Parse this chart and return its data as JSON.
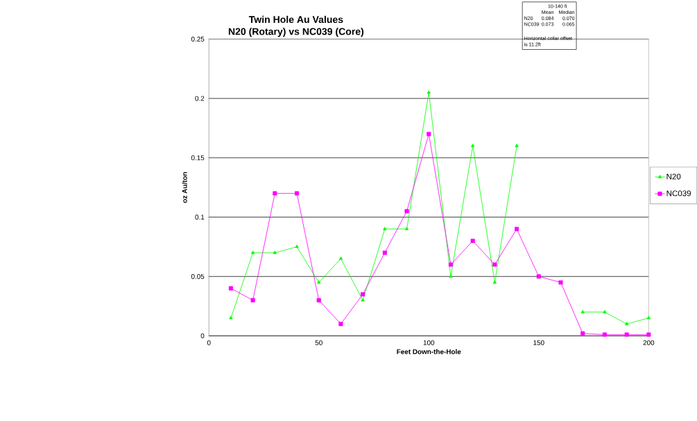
{
  "chart_data": {
    "type": "line",
    "title": "Twin Hole Au Values",
    "subtitle": "N20 (Rotary) vs NC039 (Core)",
    "xlabel": "Feet Down-the-Hole",
    "ylabel": "oz Au/ton",
    "x": [
      10,
      20,
      30,
      40,
      50,
      60,
      70,
      80,
      90,
      100,
      110,
      120,
      130,
      140,
      150,
      160,
      170,
      180,
      190,
      200
    ],
    "series": [
      {
        "name": "N20",
        "color": "#00ff00",
        "marker": "triangle",
        "values": [
          0.015,
          0.07,
          0.07,
          0.075,
          0.045,
          0.065,
          0.03,
          0.09,
          0.09,
          0.205,
          0.05,
          0.16,
          0.045,
          0.16,
          null,
          null,
          0.02,
          0.02,
          0.01,
          0.015
        ]
      },
      {
        "name": "NC039",
        "color": "#ff00ff",
        "marker": "square",
        "values": [
          0.04,
          0.03,
          0.12,
          0.12,
          0.03,
          0.01,
          0.035,
          0.07,
          0.105,
          0.17,
          0.06,
          0.08,
          0.06,
          0.09,
          0.05,
          0.045,
          0.002,
          0.001,
          0.001,
          0.001
        ]
      }
    ],
    "xlim": [
      0,
      200
    ],
    "xticks": [
      0,
      50,
      100,
      150,
      200
    ],
    "ylim": [
      0,
      0.25
    ],
    "yticks": [
      0,
      0.05,
      0.1,
      0.15,
      0.2,
      0.25
    ],
    "grid": "y",
    "legend": "right",
    "line_style": "solid",
    "annotations": [
      "10-140 ft",
      "Mean",
      "Median",
      "N20",
      "0.084",
      "0.070",
      "NC039",
      "0.073",
      "0.065",
      "Horizontal collar offset is 11.2ft"
    ]
  }
}
